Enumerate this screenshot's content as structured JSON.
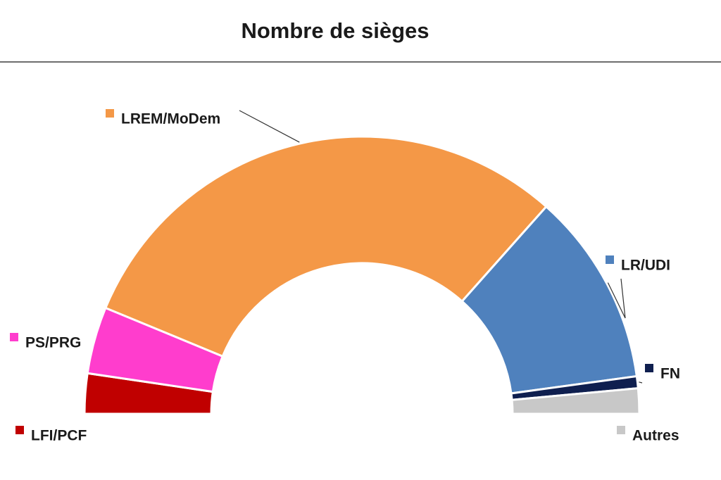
{
  "chart_data": {
    "type": "pie",
    "title": "Nombre de sièges",
    "style": "half-donut",
    "legend": "labels beside segments",
    "series": [
      {
        "name": "LFI/PCF",
        "value": 27,
        "color": "#c00000"
      },
      {
        "name": "PS/PRG",
        "value": 45,
        "color": "#ff3dcd"
      },
      {
        "name": "LREM/MoDem",
        "value": 350,
        "color": "#f49847"
      },
      {
        "name": "LR/UDI",
        "value": 130,
        "color": "#4f81bd"
      },
      {
        "name": "FN",
        "value": 8,
        "color": "#0f1f4f"
      },
      {
        "name": "Autres",
        "value": 17,
        "color": "#c8c8c8"
      }
    ]
  }
}
